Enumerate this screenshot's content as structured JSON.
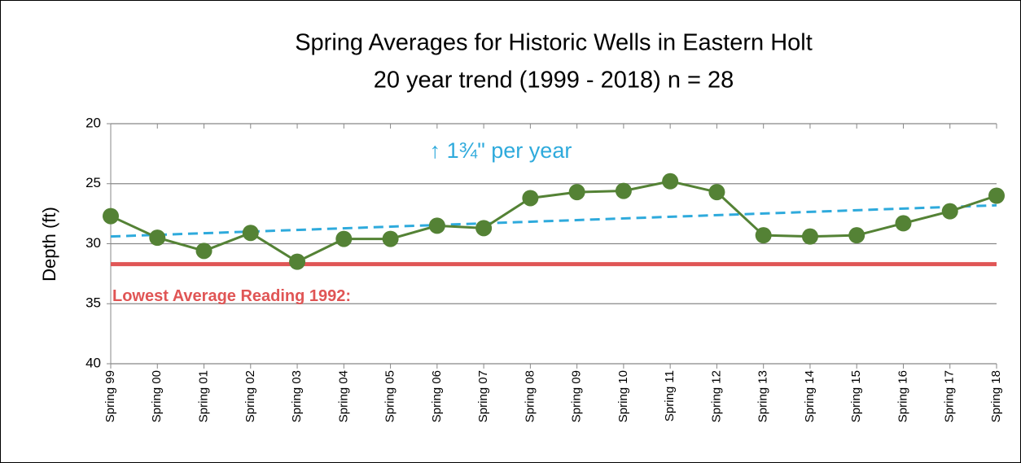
{
  "chart_data": {
    "type": "line",
    "title": [
      "Spring Averages for Historic Wells in Eastern Holt",
      "20 year trend (1999 - 2018)  n = 28"
    ],
    "y_label": "Depth (ft)",
    "categories": [
      "Spring 99",
      "Spring 00",
      "Spring 01",
      "Spring 02",
      "Spring 03",
      "Spring 04",
      "Spring 05",
      "Spring 06",
      "Spring 07",
      "Spring 08",
      "Spring 09",
      "Spring 10",
      "Spring 11",
      "Spring 12",
      "Spring 13",
      "Spring 14",
      "Spring 15",
      "Spring 16",
      "Spring 17",
      "Spring 18"
    ],
    "series": [
      {
        "color": "#548235",
        "values": [
          27.7,
          29.5,
          30.6,
          29.1,
          31.5,
          29.6,
          29.6,
          28.5,
          28.7,
          26.2,
          25.7,
          25.6,
          24.8,
          25.7,
          29.3,
          29.4,
          29.3,
          28.3,
          27.3,
          26.0
        ]
      }
    ],
    "trendline": {
      "values": [
        29.4,
        26.8
      ],
      "color": "#2eaadc"
    },
    "reference_line": {
      "value": 31.7,
      "label": "Lowest Average Reading 1992:",
      "color": "#e05555"
    },
    "annotation": {
      "text": "↑ 1¾\" per year",
      "color": "#2eaadc"
    },
    "ylim": [
      20,
      40
    ],
    "y_inverted": true,
    "yticks": [
      20,
      25,
      30,
      35,
      40
    ],
    "grid": true
  }
}
